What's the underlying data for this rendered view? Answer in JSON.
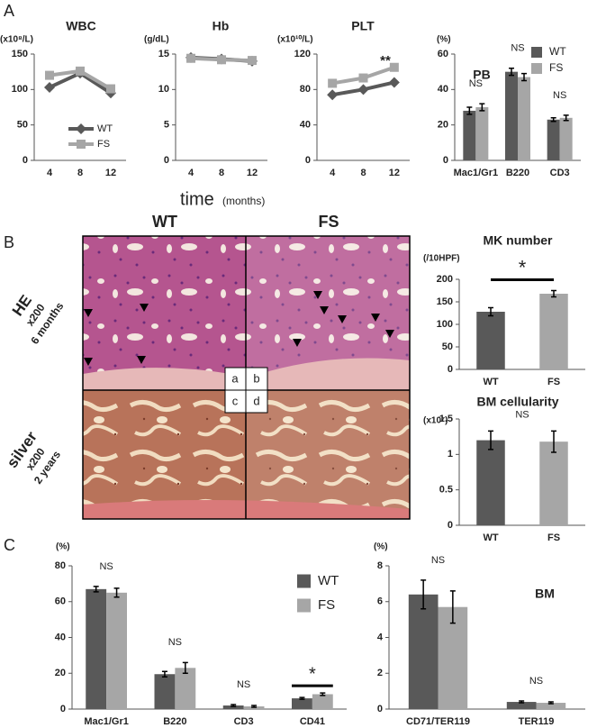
{
  "panel_labels": [
    "A",
    "B",
    "C"
  ],
  "x_axis_label": {
    "text": "time",
    "unit": "(months)"
  },
  "histology": {
    "columns": [
      "WT",
      "FS"
    ],
    "rows": [
      {
        "stain": "HE",
        "magnification": "x200",
        "age": "6 months"
      },
      {
        "stain": "silver",
        "magnification": "x200",
        "age": "2 years"
      }
    ],
    "fields": [
      "a",
      "b",
      "c",
      "d"
    ]
  },
  "chart_data": [
    {
      "type": "line",
      "title": "WBC",
      "unit": "(x10⁸/L)",
      "categories": [
        "4",
        "8",
        "12"
      ],
      "ylim": [
        0,
        150
      ],
      "yticks": [
        0,
        50,
        100,
        150
      ],
      "legend": true,
      "series": [
        {
          "name": "WT",
          "color": "#595959",
          "marker": "diamond",
          "values": [
            103,
            123,
            95
          ]
        },
        {
          "name": "FS",
          "color": "#a6a6a6",
          "marker": "square",
          "values": [
            120,
            126,
            101
          ]
        }
      ]
    },
    {
      "type": "line",
      "title": "Hb",
      "unit": "(g/dL)",
      "categories": [
        "4",
        "8",
        "12"
      ],
      "ylim": [
        0,
        15
      ],
      "yticks": [
        0,
        5,
        10,
        15
      ],
      "series": [
        {
          "name": "WT",
          "color": "#595959",
          "marker": "diamond",
          "values": [
            14.5,
            14.3,
            14.0
          ]
        },
        {
          "name": "FS",
          "color": "#a6a6a6",
          "marker": "square",
          "values": [
            14.4,
            14.2,
            14.1
          ]
        }
      ]
    },
    {
      "type": "line",
      "title": "PLT",
      "unit": "(x10¹⁰/L)",
      "categories": [
        "4",
        "8",
        "12"
      ],
      "ylim": [
        0,
        120
      ],
      "yticks": [
        0,
        40,
        80,
        120
      ],
      "annotation": "**",
      "series": [
        {
          "name": "WT",
          "color": "#595959",
          "marker": "diamond",
          "values": [
            74,
            80,
            88
          ]
        },
        {
          "name": "FS",
          "color": "#a6a6a6",
          "marker": "square",
          "values": [
            87,
            93,
            105
          ]
        }
      ]
    },
    {
      "type": "bar",
      "title": "PB",
      "unit": "(%)",
      "categories": [
        "Mac1/Gr1",
        "B220",
        "CD3"
      ],
      "ylim": [
        0,
        60
      ],
      "yticks": [
        0,
        20,
        40,
        60
      ],
      "legend": true,
      "annotations": [
        "NS",
        "NS",
        "NS"
      ],
      "series": [
        {
          "name": "WT",
          "color": "#595959",
          "values": [
            28,
            50,
            23
          ],
          "errors": [
            2,
            2,
            1
          ]
        },
        {
          "name": "FS",
          "color": "#a6a6a6",
          "values": [
            30,
            47,
            24
          ],
          "errors": [
            2,
            2,
            1.5
          ]
        }
      ]
    },
    {
      "type": "bar",
      "title": "MK number",
      "unit": "(/10HPF)",
      "categories": [
        "WT",
        "FS"
      ],
      "ylim": [
        0,
        200
      ],
      "yticks": [
        0,
        50,
        100,
        150,
        200
      ],
      "significance": "*",
      "values": [
        128,
        168
      ],
      "errors": [
        9,
        7
      ],
      "colors": [
        "#595959",
        "#a6a6a6"
      ]
    },
    {
      "type": "bar",
      "title": "BM cellularity",
      "unit": "(x10⁷)",
      "categories": [
        "WT",
        "FS"
      ],
      "ylim": [
        0,
        1.5
      ],
      "yticks": [
        0,
        0.5,
        1,
        1.5
      ],
      "significance": "NS",
      "values": [
        1.2,
        1.18
      ],
      "errors": [
        0.13,
        0.15
      ],
      "colors": [
        "#595959",
        "#a6a6a6"
      ]
    },
    {
      "type": "bar",
      "unit": "(%)",
      "categories": [
        "Mac1/Gr1",
        "B220",
        "CD3",
        "CD41"
      ],
      "ylim": [
        0,
        80
      ],
      "yticks": [
        0,
        20,
        40,
        60,
        80
      ],
      "legend": true,
      "annotations": [
        "NS",
        "NS",
        "NS",
        "*"
      ],
      "series": [
        {
          "name": "WT",
          "color": "#595959",
          "values": [
            67,
            19.5,
            2,
            6
          ],
          "errors": [
            1.5,
            1.5,
            0.5,
            0.5
          ]
        },
        {
          "name": "FS",
          "color": "#a6a6a6",
          "values": [
            65,
            23,
            1.5,
            8.3
          ],
          "errors": [
            2.5,
            3,
            0.5,
            0.7
          ]
        }
      ]
    },
    {
      "type": "bar",
      "title": "BM",
      "unit": "(%)",
      "categories": [
        "CD71/TER119",
        "TER119"
      ],
      "ylim": [
        0,
        8
      ],
      "yticks": [
        0,
        2,
        4,
        6,
        8
      ],
      "annotations": [
        "NS",
        "NS"
      ],
      "series": [
        {
          "name": "WT",
          "color": "#595959",
          "values": [
            6.4,
            0.4
          ],
          "errors": [
            0.8,
            0.05
          ]
        },
        {
          "name": "FS",
          "color": "#a6a6a6",
          "values": [
            5.7,
            0.35
          ],
          "errors": [
            0.9,
            0.05
          ]
        }
      ]
    }
  ]
}
